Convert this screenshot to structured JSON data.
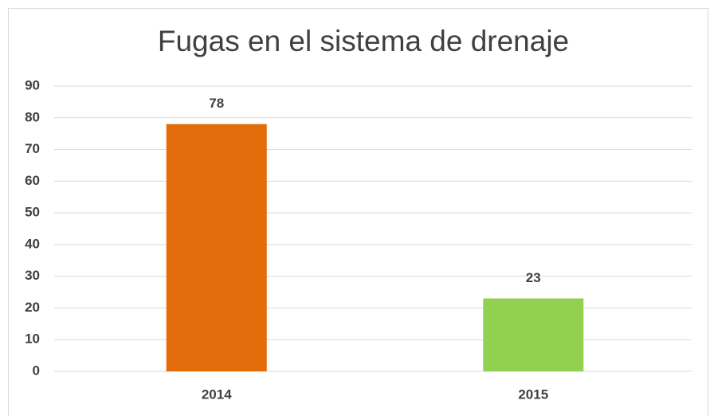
{
  "chart_data": {
    "type": "bar",
    "title": "Fugas en el sistema de drenaje",
    "categories": [
      "2014",
      "2015"
    ],
    "values": [
      78,
      23
    ],
    "colors": [
      "#e36c0a",
      "#92d050"
    ],
    "ylim": [
      0,
      90
    ],
    "yticks": [
      0,
      10,
      20,
      30,
      40,
      50,
      60,
      70,
      80,
      90
    ],
    "grid": true
  }
}
